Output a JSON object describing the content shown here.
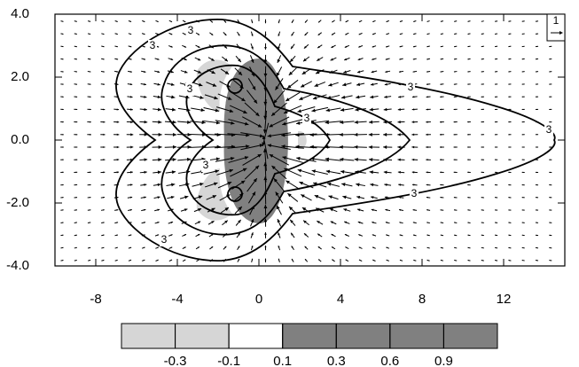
{
  "chart_data": {
    "type": "contour-vector",
    "xlim": [
      -10,
      15
    ],
    "ylim": [
      -4,
      4
    ],
    "xticks": [
      -8,
      -4,
      0,
      4,
      8,
      12
    ],
    "yticks": [
      {
        "value": 4,
        "label": "4.0"
      },
      {
        "value": 2,
        "label": "2.0"
      },
      {
        "value": 0,
        "label": "0.0"
      },
      {
        "value": -2,
        "label": "-2.0"
      },
      {
        "value": -4,
        "label": "-4.0"
      }
    ],
    "contour_labels": [
      3,
      3,
      3,
      3,
      3,
      3,
      3,
      3,
      3
    ],
    "reference_vector": 1,
    "colorbar": {
      "levels": [
        -0.3,
        -0.1,
        0.1,
        0.3,
        0.6,
        0.9
      ],
      "colors": [
        "#d6d6d6",
        "#d6d6d6",
        "#ffffff",
        "#808080",
        "#808080",
        "#808080",
        "#808080"
      ]
    }
  }
}
